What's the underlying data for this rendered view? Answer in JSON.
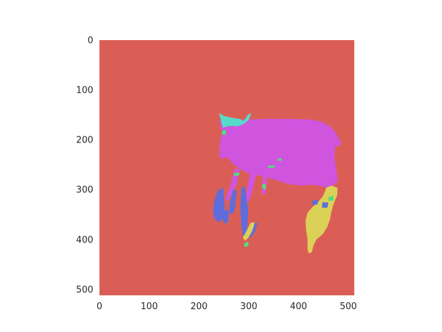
{
  "chart_data": {
    "type": "heatmap",
    "image_size": [
      512,
      512
    ],
    "xlim": [
      0,
      512
    ],
    "ylim": [
      512,
      0
    ],
    "grid": false,
    "x_ticks": [
      0,
      100,
      200,
      300,
      400,
      500
    ],
    "y_ticks": [
      0,
      100,
      200,
      300,
      400,
      500
    ],
    "x_tick_labels": [
      "0",
      "100",
      "200",
      "300",
      "400",
      "500"
    ],
    "y_tick_labels": [
      "0",
      "100",
      "200",
      "300",
      "400",
      "500"
    ],
    "colors": {
      "background": "#db5e56",
      "body": "#cf55de",
      "head_marking": "#56dbc9",
      "legs": "#5e6ddb",
      "leg_marks": "#56db7f",
      "hind_leg": "#dbd157"
    },
    "regions": [
      {
        "class": "body",
        "polygon": [
          [
            248,
            180
          ],
          [
            258,
            168
          ],
          [
            272,
            162
          ],
          [
            290,
            160
          ],
          [
            330,
            158
          ],
          [
            380,
            158
          ],
          [
            420,
            159
          ],
          [
            445,
            163
          ],
          [
            462,
            172
          ],
          [
            472,
            182
          ],
          [
            480,
            195
          ],
          [
            486,
            206
          ],
          [
            480,
            214
          ],
          [
            474,
            212
          ],
          [
            472,
            235
          ],
          [
            476,
            260
          ],
          [
            479,
            283
          ],
          [
            468,
            292
          ],
          [
            458,
            296
          ],
          [
            445,
            293
          ],
          [
            428,
            290
          ],
          [
            405,
            292
          ],
          [
            380,
            289
          ],
          [
            350,
            279
          ],
          [
            322,
            272
          ],
          [
            302,
            268
          ],
          [
            292,
            264
          ],
          [
            270,
            250
          ],
          [
            255,
            234
          ],
          [
            246,
            239
          ],
          [
            240,
            232
          ],
          [
            241,
            218
          ],
          [
            243,
            200
          ]
        ]
      },
      {
        "class": "body",
        "polygon": [
          [
            305,
            252
          ],
          [
            318,
            256
          ],
          [
            308,
            300
          ],
          [
            300,
            325
          ],
          [
            293,
            323
          ],
          [
            298,
            290
          ],
          [
            302,
            270
          ]
        ]
      },
      {
        "class": "body",
        "polygon": [
          [
            272,
            258
          ],
          [
            282,
            258
          ],
          [
            276,
            288
          ],
          [
            266,
            310
          ],
          [
            258,
            322
          ],
          [
            252,
            321
          ],
          [
            260,
            300
          ],
          [
            266,
            280
          ]
        ]
      },
      {
        "class": "body",
        "polygon": [
          [
            328,
            262
          ],
          [
            338,
            262
          ],
          [
            336,
            290
          ],
          [
            333,
            310
          ],
          [
            326,
            308
          ],
          [
            328,
            285
          ]
        ]
      },
      {
        "class": "body",
        "polygon": [
          [
            240,
            160
          ],
          [
            255,
            172
          ],
          [
            262,
            180
          ],
          [
            252,
            190
          ],
          [
            246,
            185
          ]
        ]
      },
      {
        "class": "body",
        "polygon": [
          [
            290,
            170
          ],
          [
            298,
            168
          ],
          [
            296,
            182
          ],
          [
            288,
            185
          ]
        ]
      },
      {
        "class": "head_marking",
        "polygon": [
          [
            240,
            146
          ],
          [
            250,
            152
          ],
          [
            258,
            154
          ],
          [
            268,
            156
          ],
          [
            282,
            158
          ],
          [
            290,
            162
          ],
          [
            298,
            150
          ],
          [
            305,
            146
          ],
          [
            300,
            160
          ],
          [
            290,
            168
          ],
          [
            278,
            173
          ],
          [
            266,
            172
          ],
          [
            256,
            173
          ],
          [
            248,
            176
          ],
          [
            246,
            168
          ]
        ]
      },
      {
        "class": "legs",
        "polygon": [
          [
            240,
            300
          ],
          [
            248,
            296
          ],
          [
            250,
            314
          ],
          [
            252,
            336
          ],
          [
            248,
            352
          ],
          [
            244,
            363
          ],
          [
            236,
            364
          ],
          [
            230,
            356
          ],
          [
            228,
            340
          ],
          [
            231,
            322
          ],
          [
            235,
            308
          ]
        ]
      },
      {
        "class": "legs",
        "polygon": [
          [
            285,
            296
          ],
          [
            292,
            294
          ],
          [
            296,
            320
          ],
          [
            299,
            342
          ],
          [
            297,
            375
          ],
          [
            294,
            393
          ],
          [
            288,
            392
          ],
          [
            285,
            370
          ],
          [
            283,
            335
          ]
        ]
      },
      {
        "class": "legs",
        "polygon": [
          [
            268,
            300
          ],
          [
            276,
            302
          ],
          [
            274,
            320
          ],
          [
            272,
            340
          ],
          [
            266,
            350
          ],
          [
            260,
            346
          ],
          [
            262,
            326
          ]
        ]
      },
      {
        "class": "legs",
        "polygon": [
          [
            248,
            342
          ],
          [
            258,
            340
          ],
          [
            260,
            352
          ],
          [
            258,
            366
          ],
          [
            250,
            368
          ],
          [
            246,
            356
          ]
        ]
      },
      {
        "class": "legs",
        "polygon": [
          [
            310,
            368
          ],
          [
            318,
            366
          ],
          [
            312,
            385
          ],
          [
            302,
            398
          ],
          [
            298,
            394
          ],
          [
            304,
            380
          ]
        ]
      },
      {
        "class": "hind_leg",
        "polygon": [
          [
            456,
            296
          ],
          [
            466,
            292
          ],
          [
            478,
            296
          ],
          [
            478,
            310
          ],
          [
            470,
            330
          ],
          [
            466,
            345
          ],
          [
            463,
            360
          ],
          [
            458,
            374
          ],
          [
            449,
            389
          ],
          [
            436,
            400
          ],
          [
            430,
            412
          ],
          [
            427,
            425
          ],
          [
            421,
            428
          ],
          [
            418,
            420
          ],
          [
            418,
            400
          ],
          [
            415,
            380
          ],
          [
            414,
            362
          ],
          [
            418,
            346
          ],
          [
            428,
            335
          ],
          [
            440,
            324
          ],
          [
            449,
            313
          ]
        ]
      },
      {
        "class": "hind_leg",
        "polygon": [
          [
            304,
            366
          ],
          [
            312,
            366
          ],
          [
            308,
            380
          ],
          [
            302,
            392
          ],
          [
            298,
            398
          ],
          [
            292,
            402
          ],
          [
            288,
            396
          ],
          [
            296,
            382
          ]
        ]
      },
      {
        "class": "leg_marks",
        "polygon": [
          [
            290,
            408
          ],
          [
            298,
            404
          ],
          [
            300,
            413
          ],
          [
            292,
            415
          ]
        ]
      },
      {
        "class": "leg_marks",
        "polygon": [
          [
            460,
            315
          ],
          [
            470,
            312
          ],
          [
            470,
            322
          ],
          [
            460,
            322
          ]
        ]
      },
      {
        "class": "leg_marks",
        "polygon": [
          [
            327,
            288
          ],
          [
            335,
            290
          ],
          [
            334,
            300
          ],
          [
            327,
            297
          ]
        ]
      },
      {
        "class": "leg_marks",
        "polygon": [
          [
            270,
            266
          ],
          [
            282,
            266
          ],
          [
            280,
            272
          ],
          [
            270,
            272
          ]
        ]
      },
      {
        "class": "leg_marks",
        "polygon": [
          [
            338,
            252
          ],
          [
            352,
            251
          ],
          [
            352,
            256
          ],
          [
            338,
            256
          ]
        ]
      },
      {
        "class": "leg_marks",
        "polygon": [
          [
            358,
            238
          ],
          [
            366,
            237
          ],
          [
            366,
            242
          ],
          [
            358,
            242
          ]
        ]
      },
      {
        "class": "leg_marks",
        "polygon": [
          [
            246,
            182
          ],
          [
            254,
            180
          ],
          [
            254,
            190
          ],
          [
            246,
            190
          ]
        ]
      },
      {
        "class": "legs",
        "polygon": [
          [
            448,
            325
          ],
          [
            460,
            326
          ],
          [
            458,
            336
          ],
          [
            447,
            336
          ]
        ]
      },
      {
        "class": "legs",
        "polygon": [
          [
            428,
            322
          ],
          [
            440,
            320
          ],
          [
            438,
            330
          ],
          [
            426,
            330
          ]
        ]
      }
    ]
  }
}
